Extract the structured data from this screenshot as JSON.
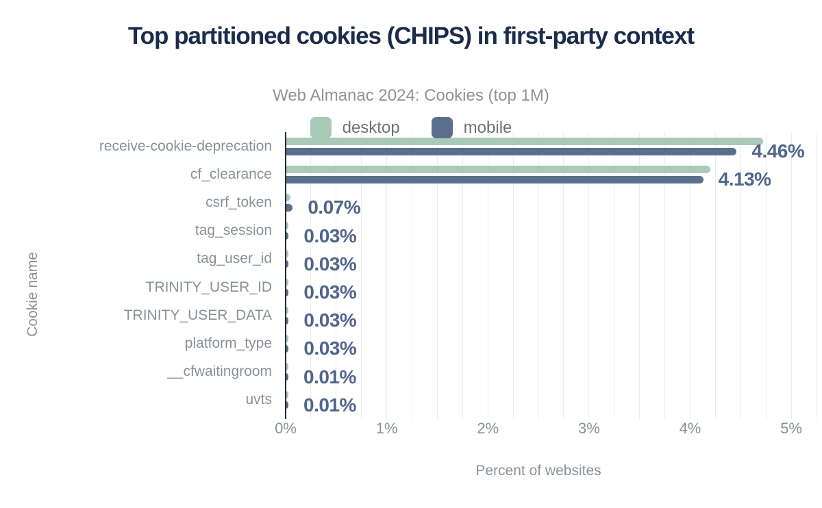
{
  "header": {
    "title": "Top partitioned cookies (CHIPS) in first-party context",
    "subtitle": "Web Almanac 2024: Cookies (top 1M)"
  },
  "colors": {
    "title": "#1b2b4c",
    "subtitle": "#8f9297",
    "desktop": "#a8cab7",
    "mobile": "#5b6e8d",
    "value_label": "#51668c",
    "axis_text": "#8b9199",
    "gridline": "#ededed",
    "axis_line": "#2b2b2b",
    "background": "#ffffff"
  },
  "chart_data": {
    "type": "bar",
    "orientation": "horizontal",
    "title": "Top partitioned cookies (CHIPS) in first-party context",
    "subtitle": "Web Almanac 2024: Cookies (top 1M)",
    "xlabel": "Percent of websites",
    "ylabel": "Cookie name",
    "xlim": [
      0,
      5.25
    ],
    "x_ticks": [
      {
        "value": 0,
        "label": "0%"
      },
      {
        "value": 1,
        "label": "1%"
      },
      {
        "value": 2,
        "label": "2%"
      },
      {
        "value": 3,
        "label": "3%"
      },
      {
        "value": 4,
        "label": "4%"
      },
      {
        "value": 5,
        "label": "5%"
      }
    ],
    "grid": {
      "minor_step": 0.25,
      "show": true,
      "position": "vertical"
    },
    "legend_position": "top",
    "categories": [
      "receive-cookie-deprecation",
      "cf_clearance",
      "csrf_token",
      "tag_session",
      "tag_user_id",
      "TRINITY_USER_ID",
      "TRINITY_USER_DATA",
      "platform_type",
      "__cfwaitingroom",
      "uvts"
    ],
    "series": [
      {
        "name": "desktop",
        "color": "#a8cab7",
        "values": [
          4.72,
          4.2,
          0.05,
          0.03,
          0.03,
          0.03,
          0.03,
          0.03,
          0.01,
          0.01
        ]
      },
      {
        "name": "mobile",
        "color": "#5b6e8d",
        "values": [
          4.46,
          4.13,
          0.07,
          0.03,
          0.03,
          0.03,
          0.03,
          0.03,
          0.01,
          0.01
        ]
      }
    ],
    "data_labels": [
      "4.46%",
      "4.13%",
      "0.07%",
      "0.03%",
      "0.03%",
      "0.03%",
      "0.03%",
      "0.03%",
      "0.01%",
      "0.01%"
    ]
  }
}
